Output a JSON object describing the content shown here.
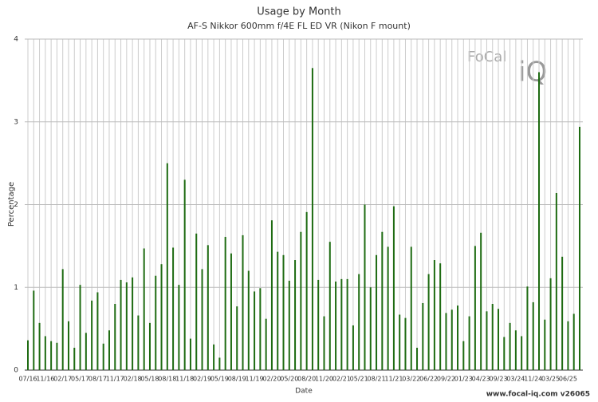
{
  "chart_data": {
    "type": "bar",
    "title": "Usage by Month",
    "subtitle": "AF-S Nikkor 600mm f/4E FL ED VR (Nikon F mount)",
    "x_label": "Date",
    "y_label": "Percentage",
    "logo": [
      "FoCal",
      "iQ"
    ],
    "footer": "www.focal-iq.com  v26065",
    "color": "#1e6b12",
    "grid": true,
    "ylim": [
      0,
      4
    ],
    "yticks": [
      0,
      1,
      2,
      3,
      4
    ],
    "categories": [
      "07/16",
      null,
      null,
      "11/16",
      null,
      null,
      "02/17",
      null,
      null,
      "05/17",
      null,
      null,
      "08/17",
      null,
      null,
      "11/17",
      null,
      null,
      "02/18",
      null,
      null,
      "05/18",
      null,
      null,
      "08/18",
      null,
      null,
      "11/18",
      null,
      null,
      "02/19",
      null,
      null,
      "05/19",
      null,
      null,
      "08/19",
      null,
      null,
      "11/19",
      null,
      null,
      "02/20",
      null,
      null,
      "05/20",
      null,
      null,
      "08/20",
      null,
      null,
      "11/20",
      null,
      null,
      "02/21",
      null,
      null,
      "05/21",
      null,
      null,
      "08/21",
      null,
      null,
      "11/21",
      null,
      null,
      "03/22",
      null,
      null,
      "06/22",
      null,
      null,
      "09/22",
      null,
      null,
      "01/23",
      null,
      null,
      "04/23",
      null,
      null,
      "09/23",
      null,
      null,
      "03/24",
      null,
      null,
      "11/24",
      null,
      null,
      "03/25",
      null,
      null,
      "06/25",
      null,
      null
    ],
    "values": [
      0.36,
      0.96,
      0.57,
      0.41,
      0.35,
      0.33,
      1.22,
      0.59,
      0.27,
      1.03,
      0.45,
      0.84,
      0.94,
      0.32,
      0.48,
      0.8,
      1.09,
      1.06,
      1.12,
      0.66,
      1.47,
      0.57,
      1.14,
      1.28,
      2.5,
      1.48,
      1.03,
      2.3,
      0.38,
      1.65,
      1.22,
      1.51,
      0.31,
      0.15,
      1.61,
      1.41,
      0.77,
      1.63,
      1.2,
      0.95,
      0.99,
      0.62,
      1.81,
      1.43,
      1.39,
      1.08,
      1.33,
      1.67,
      1.91,
      3.65,
      1.09,
      0.65,
      1.55,
      1.07,
      1.1,
      1.1,
      0.54,
      1.16,
      2.0,
      1.0,
      1.39,
      1.67,
      1.49,
      1.98,
      0.67,
      0.63,
      1.49,
      0.27,
      0.81,
      1.16,
      1.33,
      1.29,
      0.69,
      0.73,
      0.78,
      0.35,
      0.65,
      1.5,
      1.66,
      0.71,
      0.8,
      0.74,
      0.4,
      0.57,
      0.48,
      0.41,
      1.01,
      0.82,
      3.6,
      0.61,
      1.11,
      2.14,
      1.37,
      0.59,
      0.68,
      2.94
    ]
  }
}
